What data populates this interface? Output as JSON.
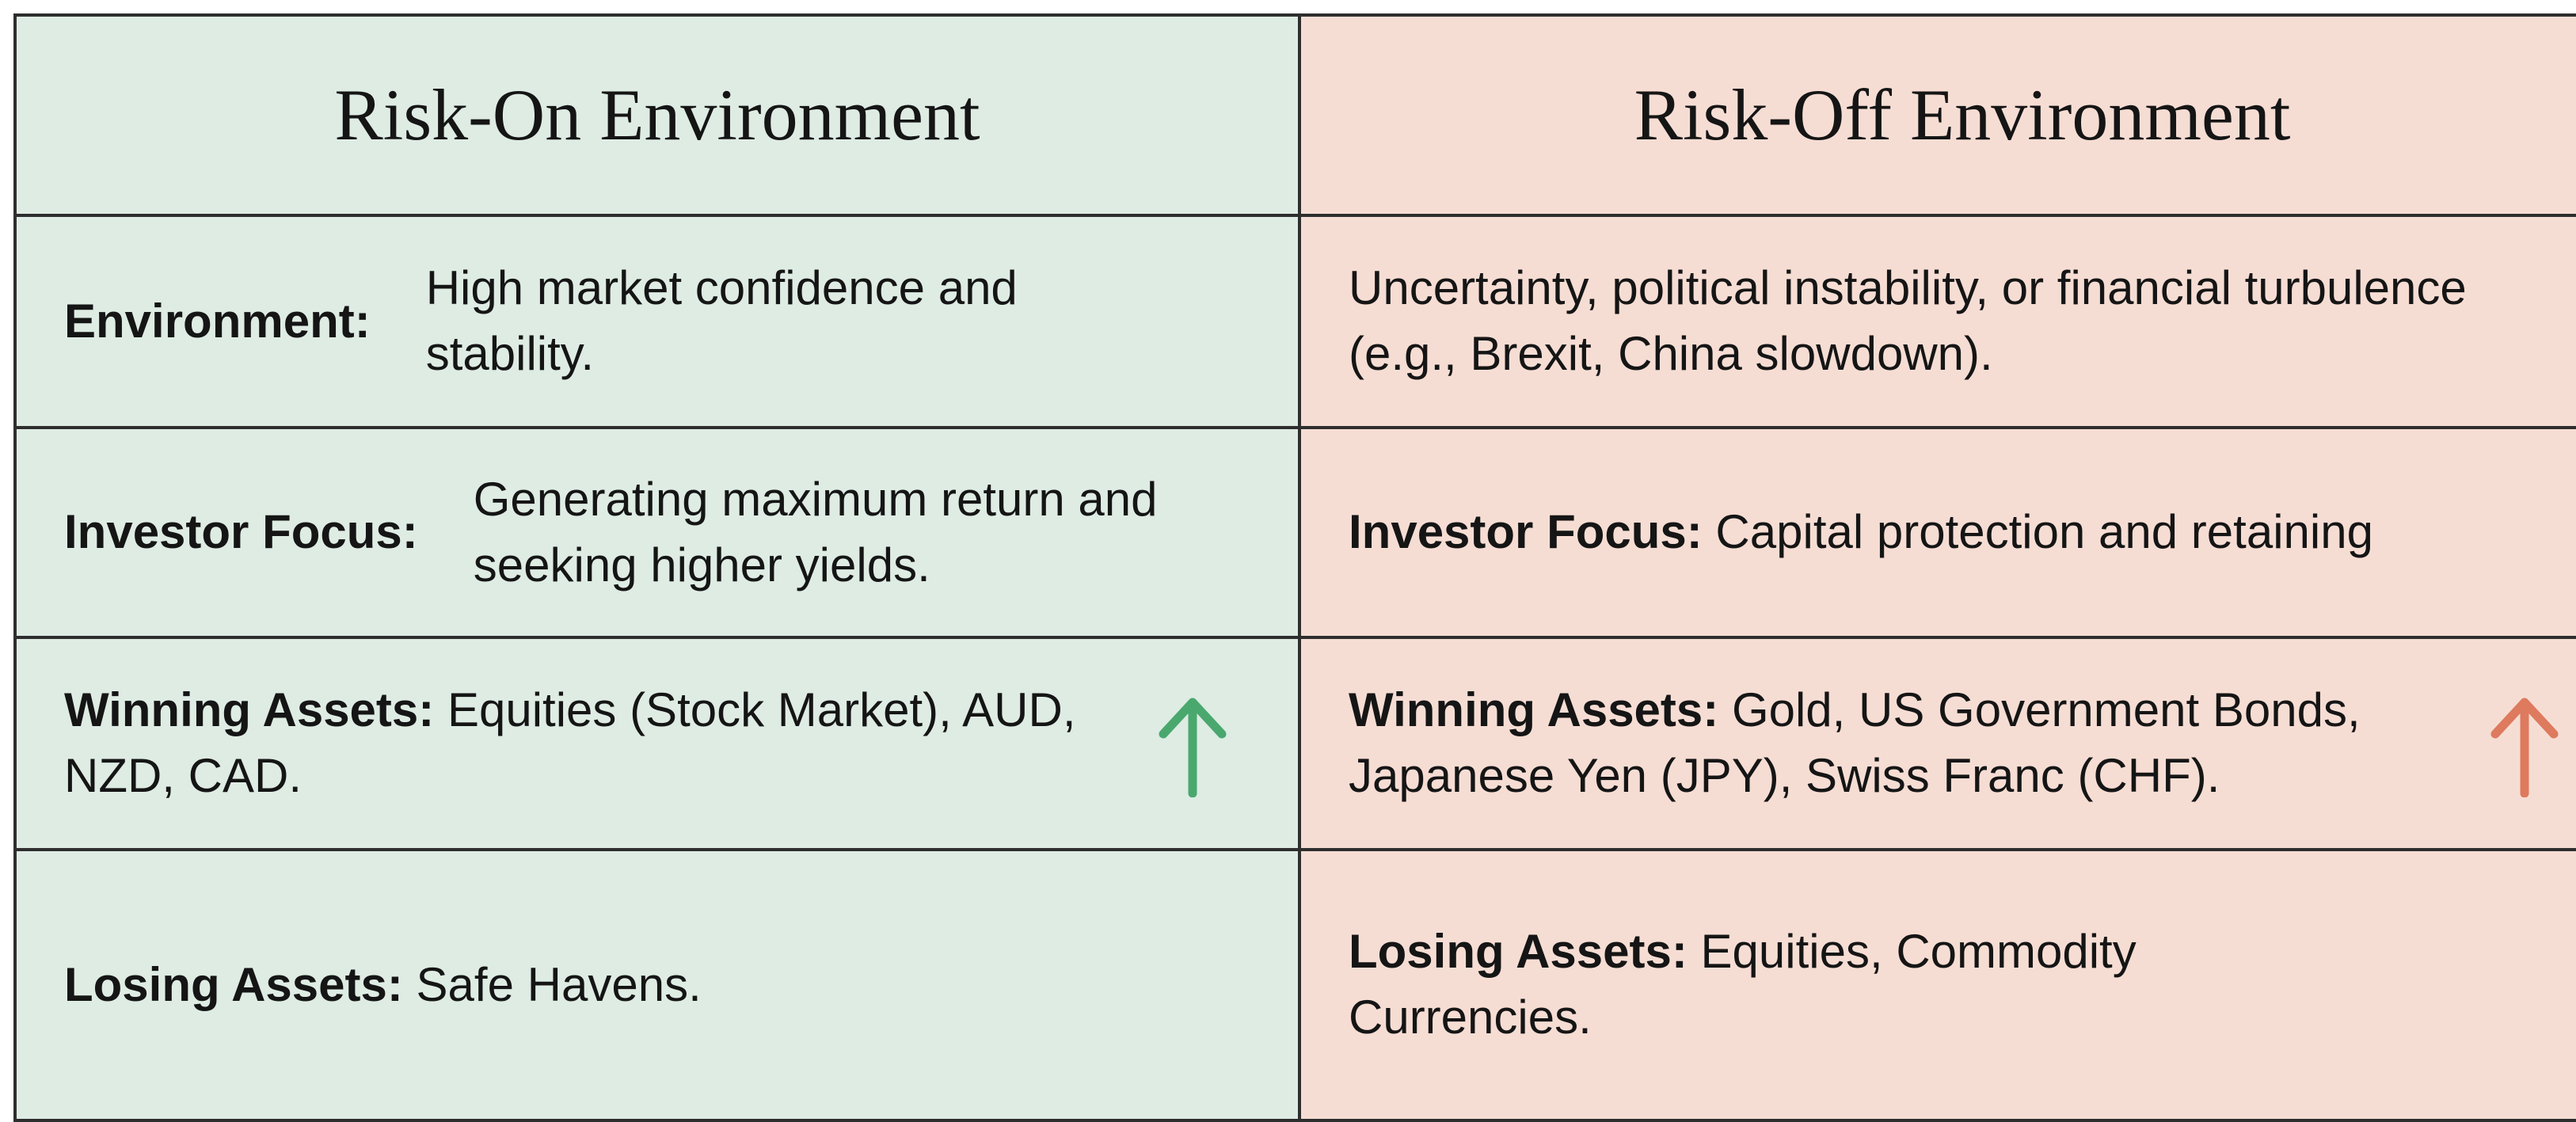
{
  "columns": [
    {
      "title": "Risk-On Environment",
      "rows": [
        {
          "label": "Environment:",
          "text": "High market confidence and stability."
        },
        {
          "label": "Investor Focus:",
          "text": "Generating maximum return and seeking higher yields."
        },
        {
          "label": "Winning Assets:",
          "text": "Equities (Stock Market), AUD, NZD, CAD."
        },
        {
          "label": "Losing Assets:",
          "text": "Safe Havens."
        }
      ]
    },
    {
      "title": "Risk-Off Environment",
      "rows": [
        {
          "text": "Uncertainty, political instability, or financial turbulence (e.g., Brexit, China slowdown)."
        },
        {
          "label": "Investor Focus:",
          "text": "Capital protection and retaining"
        },
        {
          "label": "Winning Assets:",
          "text": "Gold, US Government Bonds, Japanese Yen (JPY), Swiss Franc (CHF)."
        },
        {
          "label": "Losing Assets:",
          "text": "Equities, Commodity Currencies."
        }
      ]
    }
  ]
}
